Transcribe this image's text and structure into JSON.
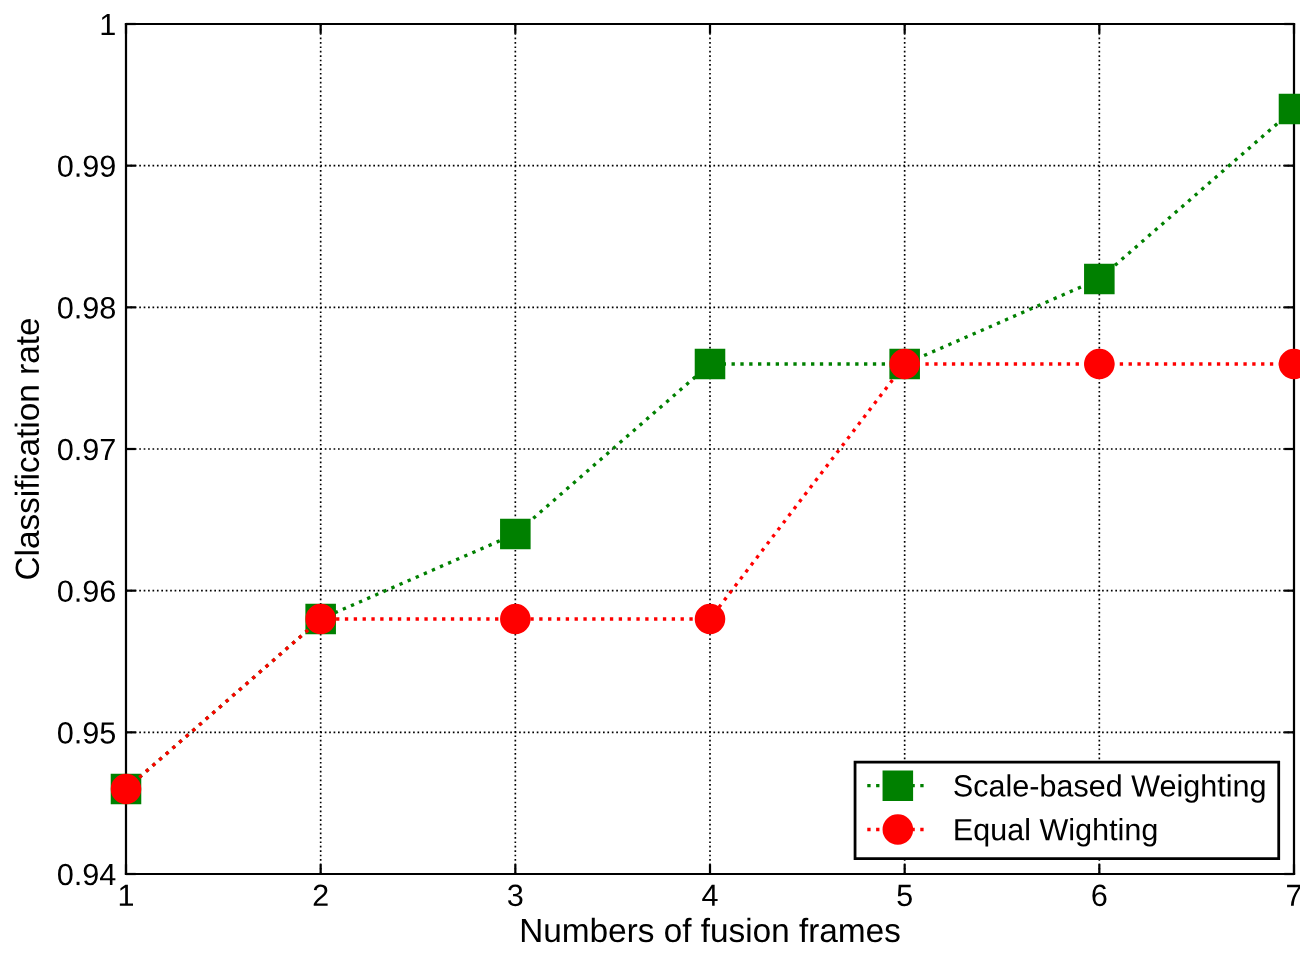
{
  "chart_data": {
    "type": "line",
    "xlabel": "Numbers of fusion frames",
    "ylabel": "Classification rate",
    "x": [
      1,
      2,
      3,
      4,
      5,
      6,
      7
    ],
    "series": [
      {
        "name": "Scale-based Weighting",
        "color": "#008000",
        "marker": "square",
        "values": [
          0.946,
          0.958,
          0.964,
          0.976,
          0.976,
          0.982,
          0.994
        ]
      },
      {
        "name": "Equal Wighting",
        "color": "#ff0000",
        "marker": "circle",
        "values": [
          0.946,
          0.958,
          0.958,
          0.958,
          0.976,
          0.976,
          0.976
        ]
      }
    ],
    "xlim": [
      1,
      7
    ],
    "xticks": [
      1,
      2,
      3,
      4,
      5,
      6,
      7
    ],
    "ylim": [
      0.94,
      1
    ],
    "yticks": [
      0.94,
      0.95,
      0.96,
      0.97,
      0.98,
      0.99,
      1
    ],
    "grid": true,
    "legend": "bottom right",
    "line_style": "dotted"
  }
}
